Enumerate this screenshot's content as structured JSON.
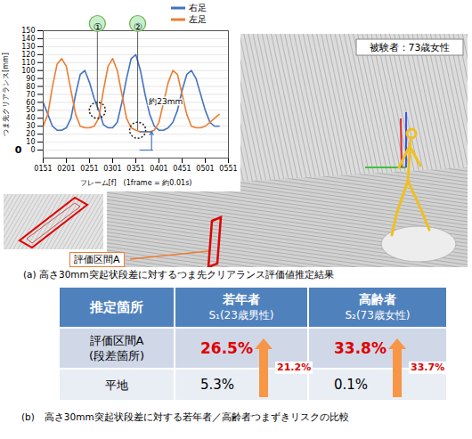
{
  "chart_data": {
    "type": "line",
    "x_label": "フレーム[f]　(1frame = 約0.01s)",
    "y_label": "つま先クリアランス[mm]",
    "x": [
      151,
      161,
      171,
      181,
      191,
      201,
      211,
      221,
      231,
      241,
      251,
      261,
      271,
      281,
      291,
      301,
      311,
      321,
      331,
      341,
      351,
      361,
      371,
      381,
      391,
      401,
      411,
      421,
      431,
      441,
      451,
      461,
      471,
      481,
      491,
      501,
      511,
      521,
      531
    ],
    "series": [
      {
        "name": "右足",
        "color": "#4472c4",
        "values": [
          60,
          45,
          30,
          25,
          25,
          28,
          40,
          70,
          95,
          100,
          85,
          65,
          50,
          32,
          28,
          28,
          35,
          60,
          90,
          115,
          120,
          100,
          70,
          45,
          30,
          25,
          25,
          28,
          35,
          50,
          75,
          95,
          100,
          90,
          70,
          50,
          35,
          30,
          30
        ]
      },
      {
        "name": "左足",
        "color": "#ed7d31",
        "values": [
          30,
          45,
          80,
          108,
          115,
          105,
          75,
          45,
          30,
          28,
          28,
          30,
          40,
          75,
          105,
          115,
          100,
          70,
          40,
          28,
          25,
          23,
          23,
          23,
          25,
          35,
          60,
          85,
          100,
          95,
          70,
          45,
          30,
          28,
          28,
          30,
          35,
          40,
          45
        ]
      }
    ],
    "xlim": [
      151,
      551
    ],
    "xticks": [
      {
        "value": 151,
        "label": "0151"
      },
      {
        "value": 201,
        "label": "0201"
      },
      {
        "value": 251,
        "label": "0251"
      },
      {
        "value": 301,
        "label": "0301"
      },
      {
        "value": 351,
        "label": "0351"
      },
      {
        "value": 401,
        "label": "0401"
      },
      {
        "value": 451,
        "label": "0451"
      },
      {
        "value": 501,
        "label": "0501"
      },
      {
        "value": 551,
        "label": "0551"
      }
    ],
    "ylim": [
      -10,
      150
    ],
    "yticks": [
      0,
      10,
      20,
      30,
      40,
      50,
      60,
      70,
      80,
      90,
      100,
      110,
      120,
      130,
      140,
      150
    ],
    "grid": true,
    "legend": "top-right",
    "callouts": [
      {
        "text": "①",
        "x": 268,
        "y": 50
      },
      {
        "text": "②",
        "x": 355,
        "y": 25
      }
    ],
    "dimension": {
      "text": "約23mm",
      "x": 385,
      "from": 0,
      "to": 23
    },
    "zero_label": {
      "text": "0",
      "y": 0
    }
  },
  "figure": {
    "subject_label": "被験者：73歳女性",
    "section_label": "評価区間A",
    "caption": "(a) 高さ30mm突起状段差に対するつま先クリアランス評価値推定結果"
  },
  "table": {
    "header": [
      [
        "推定箇所"
      ],
      [
        "若年者",
        "S₁(23歳男性)"
      ],
      [
        "高齢者",
        "S₂(73歳女性)"
      ]
    ],
    "rows": [
      [
        [
          "評価区間A",
          "(段差箇所)"
        ],
        "26.5%",
        "33.8%"
      ],
      [
        [
          "平地"
        ],
        "5.3%",
        "0.1%"
      ]
    ],
    "increase": [
      "21.2%",
      "33.7%"
    ],
    "caption": "(b)　高さ30mm突起状段差に対する若年者／高齢者つまずきリスクの比較"
  }
}
